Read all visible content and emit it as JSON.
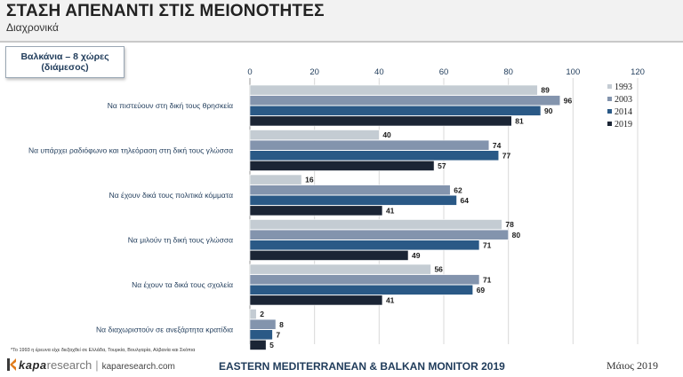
{
  "header": {
    "title": "ΣΤΑΣΗ ΑΠΕΝΑΝΤΙ ΣΤΙΣ ΜΕΙΟΝΟΤΗΤΕΣ",
    "subtitle": "Διαχρονικά"
  },
  "region_box": {
    "line1": "Βαλκάνια – 8 χώρες",
    "line2": "(διάμεσος)"
  },
  "footer": {
    "footnote": "*Το 1993 η έρευνα είχε διεξαχθεί σε Ελλάδα, Τουρκία, Βουλγαρία, Αλβανία και Σκόπια",
    "logo_kapa": "kapa",
    "logo_research": "research",
    "separator": "|",
    "url": "kaparesearch.com",
    "center": "EASTERN MEDITERRANEAN & BALKAN MONITOR 2019",
    "right": "Μάιος 2019"
  },
  "chart_data": {
    "type": "bar",
    "orientation": "horizontal",
    "categories": [
      "Να πιστεύουν στη δική τους θρησκεία",
      "Να υπάρχει ραδιόφωνο και τηλεόραση στη δική τους γλώσσα",
      "Να έχουν δικά τους πολιτικά κόμματα",
      "Να μιλούν τη δική τους γλώσσα",
      "Να έχουν τα δικά τους σχολεία",
      "Να διαχωριστούν σε ανεξάρτητα κρατίδια"
    ],
    "series": [
      {
        "name": "1993",
        "color": "#c4ccd3",
        "values": [
          89,
          40,
          16,
          78,
          56,
          2
        ]
      },
      {
        "name": "2003",
        "color": "#8394ad",
        "values": [
          96,
          74,
          62,
          80,
          71,
          8
        ]
      },
      {
        "name": "2014",
        "color": "#2a5986",
        "values": [
          90,
          77,
          64,
          71,
          69,
          7
        ]
      },
      {
        "name": "2019",
        "color": "#1b2535",
        "values": [
          81,
          57,
          41,
          49,
          41,
          5
        ]
      }
    ],
    "xlim": [
      0,
      120
    ],
    "xticks": [
      "0",
      "20",
      "40",
      "60",
      "80",
      "100",
      "120"
    ],
    "grid": true,
    "legend_position": "right"
  }
}
